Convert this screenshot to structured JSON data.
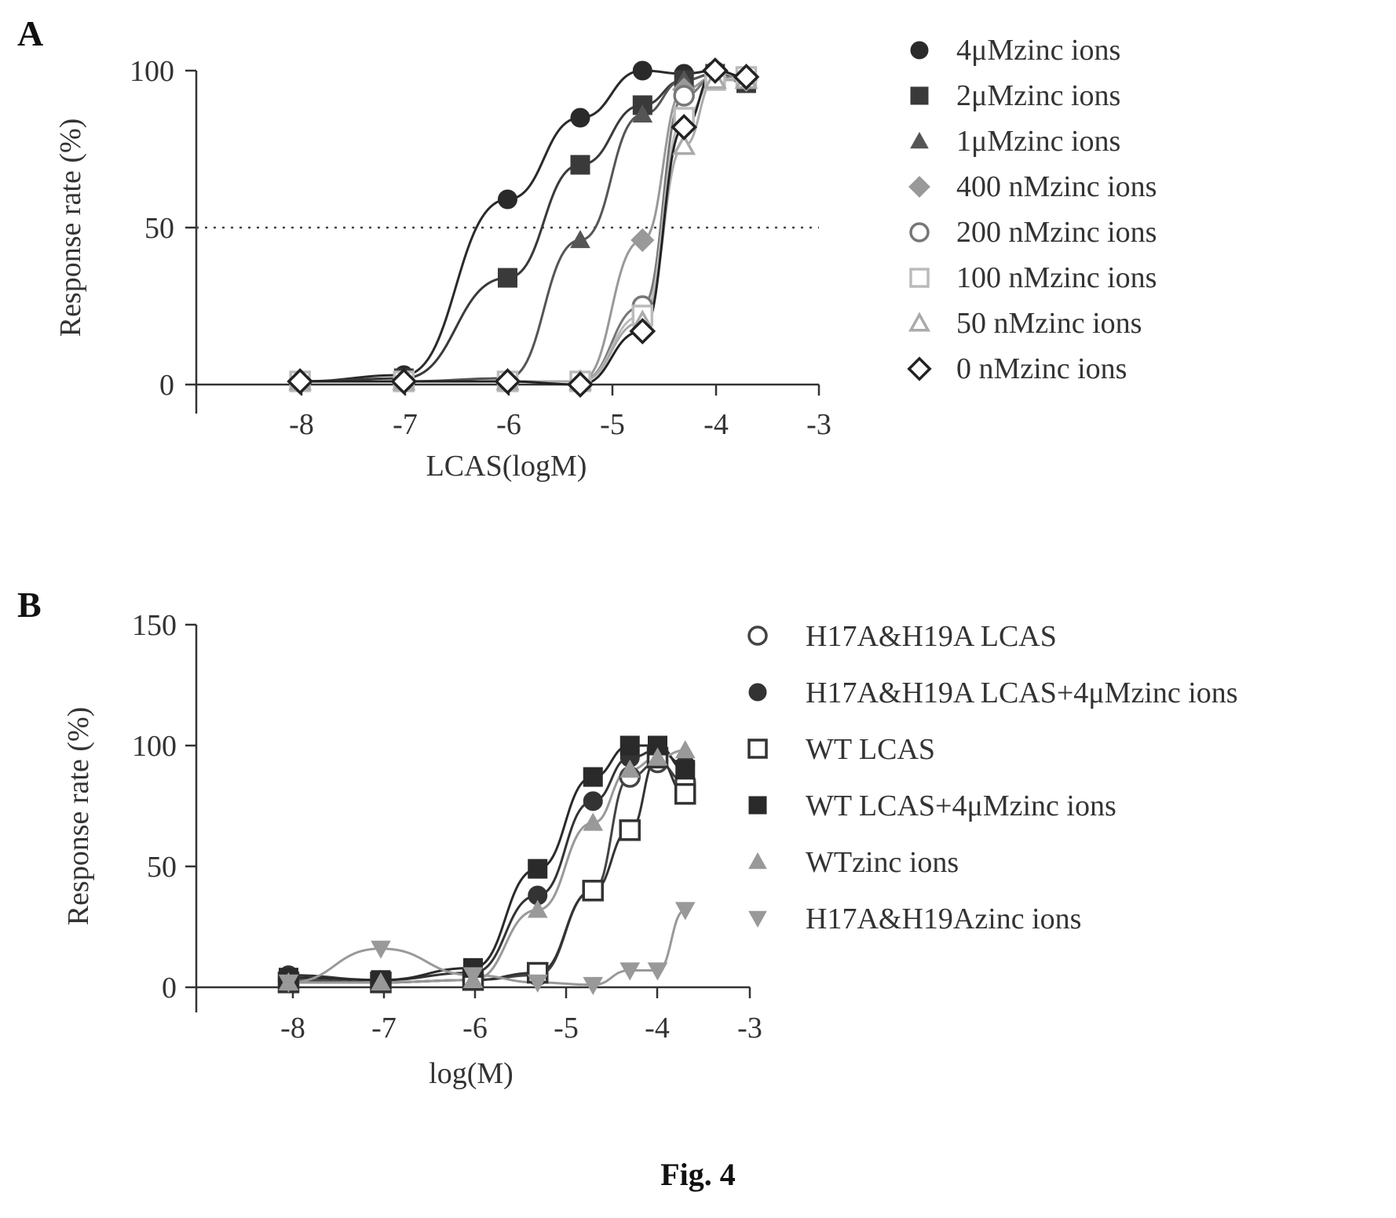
{
  "figure_caption": "Fig. 4",
  "chart_data": [
    {
      "panel": "A",
      "type": "scatter",
      "xlabel": "LCAS(logM)",
      "ylabel": "Response rate (%)",
      "xlim": [
        -9,
        -3
      ],
      "ylim": [
        0,
        100
      ],
      "x_ticks": [
        -8,
        -7,
        -6,
        -5,
        -4,
        -3
      ],
      "y_ticks": [
        0,
        50,
        100
      ],
      "reference_line_y": 50,
      "series": [
        {
          "name": "4μMzinc ions",
          "marker": "circle-filled",
          "color": "#2a2a2a",
          "x": [
            -8,
            -7,
            -6,
            -5.3,
            -4.7,
            -4.3,
            -4,
            -3.7
          ],
          "y": [
            1,
            3,
            59,
            85,
            100,
            99,
            100,
            98
          ]
        },
        {
          "name": "2μMzinc ions",
          "marker": "square-filled",
          "color": "#3a3a3a",
          "x": [
            -8,
            -7,
            -6,
            -5.3,
            -4.7,
            -4.3,
            -4,
            -3.7
          ],
          "y": [
            1,
            2,
            34,
            70,
            89,
            97,
            99,
            96
          ]
        },
        {
          "name": "1μMzinc ions",
          "marker": "triangle-filled",
          "color": "#555555",
          "x": [
            -8,
            -7,
            -6,
            -5.3,
            -4.7,
            -4.3,
            -4,
            -3.7
          ],
          "y": [
            1,
            1,
            2,
            46,
            86,
            97,
            99,
            97
          ]
        },
        {
          "name": "400 nMzinc ions",
          "marker": "diamond-filled",
          "color": "#999999",
          "x": [
            -8,
            -7,
            -6,
            -5.3,
            -4.7,
            -4.3,
            -4,
            -3.7
          ],
          "y": [
            1,
            1,
            1,
            1,
            46,
            94,
            98,
            97
          ]
        },
        {
          "name": "200 nMzinc ions",
          "marker": "circle-open",
          "color": "#777777",
          "x": [
            -8,
            -7,
            -6,
            -5.3,
            -4.7,
            -4.3,
            -4,
            -3.7
          ],
          "y": [
            1,
            1,
            1,
            1,
            25,
            92,
            98,
            98
          ]
        },
        {
          "name": "100 nMzinc ions",
          "marker": "square-open",
          "color": "#bbbbbb",
          "x": [
            -8,
            -7,
            -6,
            -5.3,
            -4.7,
            -4.3,
            -4,
            -3.7
          ],
          "y": [
            1,
            1,
            1,
            1,
            22,
            85,
            97,
            98
          ]
        },
        {
          "name": "50 nMzinc ions",
          "marker": "triangle-open",
          "color": "#aaaaaa",
          "x": [
            -8,
            -7,
            -6,
            -5.3,
            -4.7,
            -4.3,
            -4,
            -3.7
          ],
          "y": [
            1,
            1,
            1,
            1,
            20,
            76,
            97,
            97
          ]
        },
        {
          "name": "0 nMzinc ions",
          "marker": "diamond-open",
          "color": "#222222",
          "x": [
            -8,
            -7,
            -6,
            -5.3,
            -4.7,
            -4.3,
            -4,
            -3.7
          ],
          "y": [
            1,
            1,
            1,
            0,
            17,
            82,
            100,
            98
          ]
        }
      ]
    },
    {
      "panel": "B",
      "type": "scatter",
      "xlabel": "log(M)",
      "ylabel": "Response rate (%)",
      "xlim": [
        -9,
        -3
      ],
      "ylim": [
        0,
        150
      ],
      "x_ticks": [
        -8,
        -7,
        -6,
        -5,
        -4,
        -3
      ],
      "y_ticks": [
        0,
        50,
        100,
        150
      ],
      "series": [
        {
          "name": "H17A&H19A  LCAS",
          "marker": "circle-open",
          "color": "#444444",
          "x": [
            -8,
            -7,
            -6,
            -5.3,
            -4.7,
            -4.3,
            -4,
            -3.7
          ],
          "y": [
            3,
            2,
            3,
            5,
            40,
            87,
            93,
            85
          ]
        },
        {
          "name": "H17A&H19A  LCAS+4μMzinc ions",
          "marker": "circle-filled",
          "color": "#333333",
          "x": [
            -8,
            -7,
            -6,
            -5.3,
            -4.7,
            -4.3,
            -4,
            -3.7
          ],
          "y": [
            5,
            3,
            6,
            38,
            77,
            95,
            98,
            92
          ]
        },
        {
          "name": "WT  LCAS",
          "marker": "square-open",
          "color": "#333333",
          "x": [
            -8,
            -7,
            -6,
            -5.3,
            -4.7,
            -4.3,
            -4,
            -3.7
          ],
          "y": [
            2,
            2,
            3,
            6,
            40,
            65,
            95,
            80
          ]
        },
        {
          "name": "WT  LCAS+4μMzinc ions",
          "marker": "square-filled",
          "color": "#2a2a2a",
          "x": [
            -8,
            -7,
            -6,
            -5.3,
            -4.7,
            -4.3,
            -4,
            -3.7
          ],
          "y": [
            4,
            3,
            8,
            49,
            87,
            100,
            100,
            90
          ]
        },
        {
          "name": "WTzinc ions",
          "marker": "triangle-filled",
          "color": "#999999",
          "x": [
            -8,
            -7,
            -6,
            -5.3,
            -4.7,
            -4.3,
            -4,
            -3.7
          ],
          "y": [
            2,
            2,
            3,
            32,
            68,
            90,
            95,
            98
          ]
        },
        {
          "name": "H17A&H19Azinc ions",
          "marker": "triangle-down-filled",
          "color": "#999999",
          "x": [
            -8,
            -7,
            -6,
            -5.3,
            -4.7,
            -4.3,
            -4,
            -3.7
          ],
          "y": [
            2,
            16,
            5,
            2,
            1,
            7,
            7,
            32
          ]
        }
      ]
    }
  ]
}
